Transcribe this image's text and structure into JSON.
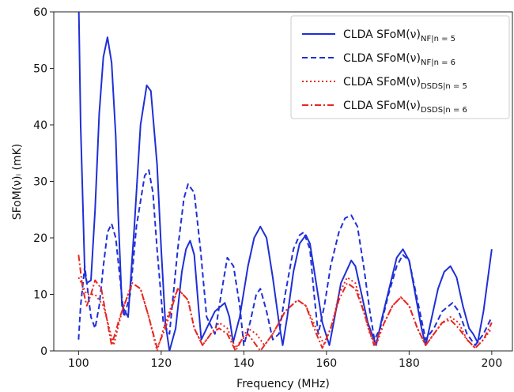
{
  "chart_data": {
    "type": "line",
    "xlabel": "Frequency (MHz)",
    "ylabel": "SFoM(ν)ᵢ (mK)",
    "xlim": [
      94,
      205
    ],
    "ylim": [
      0,
      60
    ],
    "xticks": [
      100,
      120,
      140,
      160,
      180,
      200
    ],
    "yticks": [
      0,
      10,
      20,
      30,
      40,
      50,
      60
    ],
    "legend": "upper right",
    "series": [
      {
        "name": "CLDA SFoM(ν)",
        "name_sub": "NF|n = 5",
        "color": "#1f2fd6",
        "dash": "solid",
        "x": [
          100,
          100.5,
          101.5,
          102,
          103,
          104,
          105,
          106,
          107,
          108,
          109,
          109.6,
          110.5,
          112,
          113.5,
          115,
          116.5,
          117.5,
          119,
          120,
          121,
          122,
          123.5,
          125,
          126,
          127,
          128,
          129,
          129.7,
          131,
          133,
          135.4,
          136.5,
          137.4,
          139,
          141,
          142.5,
          144,
          145.5,
          147,
          148.5,
          149.4,
          150.5,
          152,
          153.5,
          155,
          156,
          157.5,
          159,
          160.7,
          162,
          163.5,
          166,
          167,
          168.5,
          170,
          172,
          173.5,
          175.5,
          177,
          178.5,
          180,
          181.5,
          183,
          184,
          185.5,
          187,
          188.5,
          190,
          191.5,
          193,
          194.5,
          195.5,
          196.6,
          198,
          200
        ],
        "values": [
          63,
          40,
          14,
          12,
          12.5,
          25,
          42,
          52,
          55.5,
          51,
          38,
          24,
          8,
          6,
          22,
          40,
          47,
          46,
          33,
          18,
          5,
          0,
          4,
          14,
          18,
          19.5,
          17,
          8,
          2,
          4,
          7,
          8.5,
          6,
          1.5,
          6,
          15,
          20,
          22,
          20,
          13,
          5,
          1,
          6,
          14,
          19,
          20.5,
          19,
          12,
          5,
          1,
          6,
          12,
          16,
          15,
          10,
          5,
          1,
          6,
          12,
          16.5,
          18,
          16,
          10,
          4,
          1,
          6,
          11,
          14,
          15,
          13,
          8,
          4,
          3,
          1.5,
          7,
          18
        ]
      },
      {
        "name": "CLDA SFoM(ν)",
        "name_sub": "NF|n = 6",
        "color": "#1f2fd6",
        "dash": "dashed",
        "x": [
          100,
          100.5,
          101.5,
          103,
          104,
          105,
          106,
          107,
          108,
          109,
          111,
          112.5,
          114,
          116,
          117,
          118,
          119,
          120.5,
          122,
          124,
          125.5,
          126.5,
          128,
          129.5,
          131,
          133,
          134.5,
          136,
          137.5,
          139,
          140,
          141.5,
          143,
          144,
          145.5,
          147,
          148.5,
          150,
          152,
          153.5,
          154.5,
          156,
          157,
          158,
          159.5,
          161,
          163,
          164.5,
          166,
          167.5,
          169,
          170.5,
          171.6,
          173,
          175,
          177,
          178.5,
          180,
          182,
          184,
          186,
          188,
          190.5,
          192,
          194,
          196,
          198,
          200
        ],
        "values": [
          2,
          8,
          15,
          6,
          4,
          8,
          15,
          21,
          22.5,
          20,
          6,
          10,
          22,
          31,
          32,
          28,
          18,
          5,
          3,
          18,
          27,
          29.5,
          28,
          18,
          6,
          3,
          10,
          16.5,
          15,
          8,
          1,
          5,
          10,
          11,
          7,
          2,
          3,
          10,
          18,
          20.5,
          21,
          18,
          10,
          3,
          8,
          15,
          21,
          23.5,
          24,
          22,
          15,
          7,
          2,
          4,
          10,
          15,
          17,
          16,
          9,
          2,
          4,
          7,
          8.5,
          7,
          3,
          1,
          3,
          6
        ]
      },
      {
        "name": "CLDA SFoM(ν)",
        "name_sub": "DSDS|n = 5",
        "color": "#e8261f",
        "dash": "dotted",
        "x": [
          100,
          102,
          104,
          106,
          108.5,
          110.5,
          113,
          115,
          117,
          119,
          121,
          124,
          126.5,
          128,
          130,
          132,
          134,
          136,
          138,
          139.5,
          141,
          143,
          145,
          147,
          150,
          153,
          155,
          157.5,
          159.5,
          161.5,
          163,
          165,
          167,
          169,
          170.5,
          172,
          174,
          176,
          178,
          180,
          182,
          184,
          186,
          188,
          190,
          192,
          194,
          196,
          198,
          200
        ],
        "values": [
          13,
          10,
          10,
          8,
          1,
          7,
          12,
          11,
          6,
          0,
          5,
          11,
          9,
          4,
          1,
          3,
          5,
          4,
          0.5,
          2,
          4,
          3,
          1,
          3,
          7,
          9,
          8,
          4,
          1,
          5,
          10,
          13,
          12,
          7,
          3,
          1,
          5,
          8,
          9.5,
          8,
          4,
          1,
          3,
          5,
          6,
          5,
          2,
          0.5,
          2,
          4
        ]
      },
      {
        "name": "CLDA SFoM(ν)",
        "name_sub": "DSDS|n = 6",
        "color": "#e8261f",
        "dash": "dashdot",
        "x": [
          100,
          101,
          102,
          103,
          104,
          105.5,
          108,
          110,
          113,
          115,
          117,
          119,
          121,
          124,
          126.5,
          128,
          130,
          132,
          134,
          136,
          138,
          139.5,
          141,
          142.5,
          144,
          147,
          150,
          153,
          155,
          157,
          159,
          161,
          163,
          165,
          167,
          169,
          171.5,
          174,
          176,
          178,
          180,
          182,
          184,
          186,
          188,
          190,
          192,
          194,
          196,
          198,
          200
        ],
        "values": [
          17,
          11,
          8,
          10,
          12.5,
          11,
          1,
          6,
          12,
          11,
          6,
          0.5,
          4,
          11,
          9,
          4,
          1,
          3,
          4,
          3,
          0,
          2,
          3,
          1.5,
          0,
          3,
          7,
          9,
          8,
          4,
          0.5,
          4,
          9,
          12,
          11,
          7,
          1,
          5,
          8,
          9.5,
          8,
          4,
          1,
          3,
          5,
          5.5,
          4,
          2,
          0.5,
          2,
          5
        ]
      }
    ]
  }
}
